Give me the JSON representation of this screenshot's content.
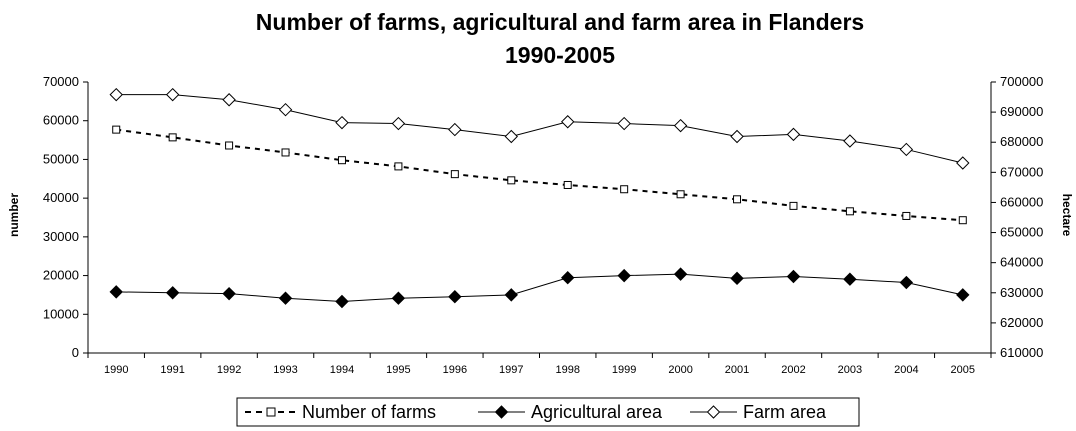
{
  "chart_data": {
    "type": "line",
    "title_line1": "Number of farms, agricultural and farm area in Flanders",
    "title_line2": "1990-2005",
    "ylabel_left": "number",
    "ylabel_right": "hectare",
    "categories": [
      "1990",
      "1991",
      "1992",
      "1993",
      "1994",
      "1995",
      "1996",
      "1997",
      "1998",
      "1999",
      "2000",
      "2001",
      "2002",
      "2003",
      "2004",
      "2005"
    ],
    "y_left": {
      "min": 0,
      "max": 70000,
      "step": 10000,
      "ticks": [
        "0",
        "10000",
        "20000",
        "30000",
        "40000",
        "50000",
        "60000",
        "70000"
      ]
    },
    "y_right": {
      "min": 610000,
      "max": 700000,
      "step": 10000,
      "ticks": [
        "610000",
        "620000",
        "630000",
        "640000",
        "650000",
        "660000",
        "670000",
        "680000",
        "690000",
        "700000"
      ]
    },
    "series": [
      {
        "name": "Number of farms",
        "axis": "left",
        "style": "dashed",
        "marker": "open-square",
        "color": "#000000",
        "values": [
          57700,
          55700,
          53600,
          51800,
          49800,
          48200,
          46200,
          44600,
          43400,
          42300,
          41000,
          39700,
          38000,
          36600,
          35400,
          34300
        ]
      },
      {
        "name": "Agricultural area",
        "axis": "right",
        "style": "solid",
        "marker": "filled-diamond",
        "color": "#000000",
        "values": [
          630300,
          630000,
          629700,
          628200,
          627100,
          628200,
          628700,
          629300,
          635000,
          635700,
          636200,
          634800,
          635400,
          634500,
          633400,
          629300
        ]
      },
      {
        "name": "Farm area",
        "axis": "right",
        "style": "solid",
        "marker": "open-diamond",
        "color": "#000000",
        "values": [
          695800,
          695800,
          694100,
          690800,
          686500,
          686200,
          684200,
          681900,
          686800,
          686200,
          685500,
          681900,
          682600,
          680400,
          677600,
          673100
        ]
      }
    ],
    "legend_position": "bottom-center",
    "grid": false
  }
}
